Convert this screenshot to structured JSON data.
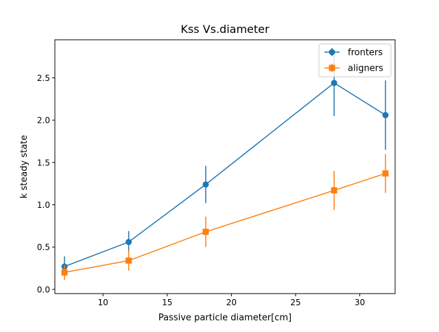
{
  "chart_data": {
    "type": "line",
    "title": "Kss Vs.diameter",
    "xlabel": "Passive particle diameter[cm]",
    "ylabel": "k steady state",
    "xlim": [
      6.25,
      32.75
    ],
    "ylim": [
      -0.05,
      2.95
    ],
    "xticks": [
      10,
      15,
      20,
      25,
      30
    ],
    "yticks": [
      0.0,
      0.5,
      1.0,
      1.5,
      2.0,
      2.5
    ],
    "xtick_labels": [
      "10",
      "15",
      "20",
      "25",
      "30"
    ],
    "ytick_labels": [
      "0.0",
      "0.5",
      "1.0",
      "1.5",
      "2.0",
      "2.5"
    ],
    "grid": false,
    "legend_position": "top-right",
    "series": [
      {
        "name": "fronters",
        "color": "#1f77b4",
        "marker": "circle",
        "x": [
          7,
          12,
          18,
          28,
          32
        ],
        "y": [
          0.27,
          0.56,
          1.24,
          2.44,
          2.06
        ],
        "err": [
          0.12,
          0.13,
          0.22,
          0.39,
          0.41
        ]
      },
      {
        "name": "aligners",
        "color": "#ff7f0e",
        "marker": "square",
        "x": [
          7,
          12,
          18,
          28,
          32
        ],
        "y": [
          0.2,
          0.34,
          0.68,
          1.17,
          1.37
        ],
        "err": [
          0.09,
          0.12,
          0.18,
          0.23,
          0.23
        ]
      }
    ]
  }
}
